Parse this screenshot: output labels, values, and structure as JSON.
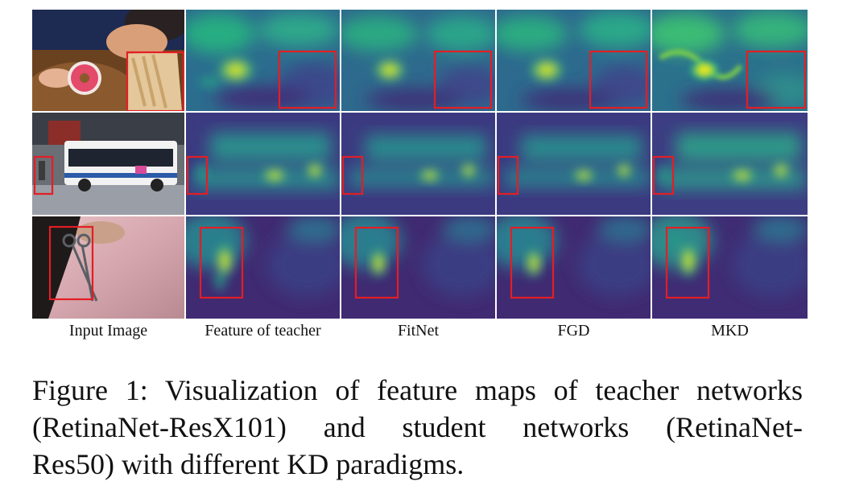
{
  "figure": {
    "column_labels": [
      "Input Image",
      "Feature of teacher",
      "FitNet",
      "FGD",
      "MKD"
    ],
    "rows": [
      {
        "input": "child-with-donut-and-fries-photo",
        "highlight": "fries"
      },
      {
        "input": "street-with-bus-photo",
        "highlight": "pedestrian"
      },
      {
        "input": "hand-with-scissors-on-pink-fur-photo",
        "highlight": "scissors"
      }
    ],
    "highlight_color": "#e31e24"
  },
  "caption": {
    "line1": "Figure 1: Visualization of feature maps of teacher networks",
    "line2": "(RetinaNet-ResX101) and student networks (RetinaNet-",
    "line3": "Res50) with different KD paradigms."
  }
}
